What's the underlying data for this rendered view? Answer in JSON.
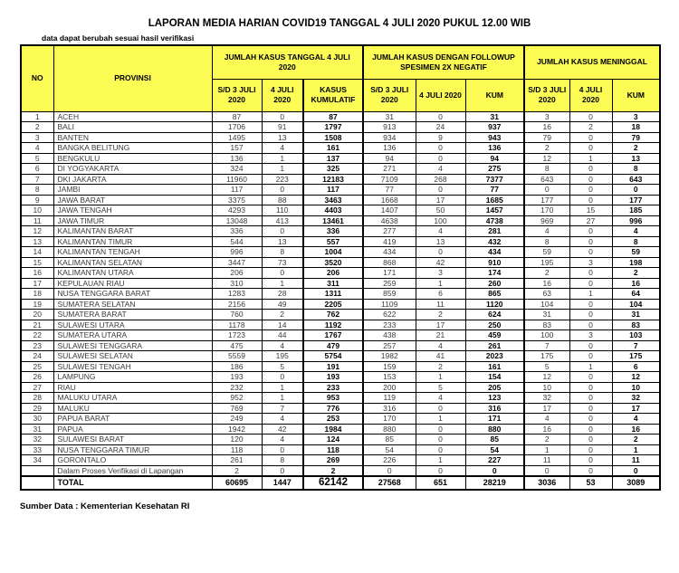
{
  "title": "LAPORAN MEDIA HARIAN COVID19 TANGGAL 4 JULI 2020 PUKUL 12.00 WIB",
  "note": "data dapat berubah sesuai hasil verifikasi",
  "footer": "Sumber Data : Kementerian Kesehatan RI",
  "colors": {
    "header_bg": "#FCFC54",
    "border": "#000000"
  },
  "table": {
    "col_headers": {
      "no": "NO",
      "provinsi": "PROVINSI",
      "groups": [
        {
          "label": "JUMLAH KASUS TANGGAL 4 JULI 2020",
          "sub": [
            "S/D 3 JULI 2020",
            "4 JULI 2020",
            "KASUS KUMULATIF"
          ]
        },
        {
          "label": "JUMLAH KASUS DENGAN FOLLOWUP SPESIMEN 2X NEGATIF",
          "sub": [
            "S/D 3 JULI 2020",
            "4 JULI 2020",
            "KUM"
          ]
        },
        {
          "label": "JUMLAH KASUS MENINGGAL",
          "sub": [
            "S/D 3 JULI 2020",
            "4 JULI 2020",
            "KUM"
          ]
        }
      ]
    },
    "rows": [
      {
        "no": "1",
        "provinsi": "ACEH",
        "values": [
          87,
          0,
          87,
          31,
          0,
          31,
          3,
          0,
          3
        ]
      },
      {
        "no": "2",
        "provinsi": "BALI",
        "values": [
          1706,
          91,
          1797,
          913,
          24,
          937,
          16,
          2,
          18
        ]
      },
      {
        "no": "3",
        "provinsi": "BANTEN",
        "values": [
          1495,
          13,
          1508,
          934,
          9,
          943,
          79,
          0,
          79
        ]
      },
      {
        "no": "4",
        "provinsi": "BANGKA BELITUNG",
        "values": [
          157,
          4,
          161,
          136,
          0,
          136,
          2,
          0,
          2
        ]
      },
      {
        "no": "5",
        "provinsi": "BENGKULU",
        "values": [
          136,
          1,
          137,
          94,
          0,
          94,
          12,
          1,
          13
        ]
      },
      {
        "no": "6",
        "provinsi": "DI YOGYAKARTA",
        "values": [
          324,
          1,
          325,
          271,
          4,
          275,
          8,
          0,
          8
        ]
      },
      {
        "no": "7",
        "provinsi": "DKI JAKARTA",
        "values": [
          11960,
          223,
          12183,
          7109,
          268,
          7377,
          643,
          0,
          643
        ]
      },
      {
        "no": "8",
        "provinsi": "JAMBI",
        "values": [
          117,
          0,
          117,
          77,
          0,
          77,
          0,
          0,
          0
        ]
      },
      {
        "no": "9",
        "provinsi": "JAWA BARAT",
        "values": [
          3375,
          88,
          3463,
          1668,
          17,
          1685,
          177,
          0,
          177
        ]
      },
      {
        "no": "10",
        "provinsi": "JAWA TENGAH",
        "values": [
          4293,
          110,
          4403,
          1407,
          50,
          1457,
          170,
          15,
          185
        ]
      },
      {
        "no": "11",
        "provinsi": "JAWA TIMUR",
        "values": [
          13048,
          413,
          13461,
          4638,
          100,
          4738,
          969,
          27,
          996
        ]
      },
      {
        "no": "12",
        "provinsi": "KALIMANTAN BARAT",
        "values": [
          336,
          0,
          336,
          277,
          4,
          281,
          4,
          0,
          4
        ]
      },
      {
        "no": "13",
        "provinsi": "KALIMANTAN TIMUR",
        "values": [
          544,
          13,
          557,
          419,
          13,
          432,
          8,
          0,
          8
        ]
      },
      {
        "no": "14",
        "provinsi": "KALIMANTAN TENGAH",
        "values": [
          996,
          8,
          1004,
          434,
          0,
          434,
          59,
          0,
          59
        ]
      },
      {
        "no": "15",
        "provinsi": "KALIMANTAN SELATAN",
        "values": [
          3447,
          73,
          3520,
          868,
          42,
          910,
          195,
          3,
          198
        ]
      },
      {
        "no": "16",
        "provinsi": "KALIMANTAN UTARA",
        "values": [
          206,
          0,
          206,
          171,
          3,
          174,
          2,
          0,
          2
        ]
      },
      {
        "no": "17",
        "provinsi": "KEPULAUAN RIAU",
        "values": [
          310,
          1,
          311,
          259,
          1,
          260,
          16,
          0,
          16
        ]
      },
      {
        "no": "18",
        "provinsi": "NUSA TENGGARA BARAT",
        "values": [
          1283,
          28,
          1311,
          859,
          6,
          865,
          63,
          1,
          64
        ]
      },
      {
        "no": "19",
        "provinsi": "SUMATERA SELATAN",
        "values": [
          2156,
          49,
          2205,
          1109,
          11,
          1120,
          104,
          0,
          104
        ]
      },
      {
        "no": "20",
        "provinsi": "SUMATERA BARAT",
        "values": [
          760,
          2,
          762,
          622,
          2,
          624,
          31,
          0,
          31
        ]
      },
      {
        "no": "21",
        "provinsi": "SULAWESI UTARA",
        "values": [
          1178,
          14,
          1192,
          233,
          17,
          250,
          83,
          0,
          83
        ]
      },
      {
        "no": "22",
        "provinsi": "SUMATERA UTARA",
        "values": [
          1723,
          44,
          1767,
          438,
          21,
          459,
          100,
          3,
          103
        ]
      },
      {
        "no": "23",
        "provinsi": "SULAWESI TENGGARA",
        "values": [
          475,
          4,
          479,
          257,
          4,
          261,
          7,
          0,
          7
        ]
      },
      {
        "no": "24",
        "provinsi": "SULAWESI SELATAN",
        "values": [
          5559,
          195,
          5754,
          1982,
          41,
          2023,
          175,
          0,
          175
        ]
      },
      {
        "no": "25",
        "provinsi": "SULAWESI TENGAH",
        "values": [
          186,
          5,
          191,
          159,
          2,
          161,
          5,
          1,
          6
        ]
      },
      {
        "no": "26",
        "provinsi": "LAMPUNG",
        "values": [
          193,
          0,
          193,
          153,
          1,
          154,
          12,
          0,
          12
        ]
      },
      {
        "no": "27",
        "provinsi": "RIAU",
        "values": [
          232,
          1,
          233,
          200,
          5,
          205,
          10,
          0,
          10
        ]
      },
      {
        "no": "28",
        "provinsi": "MALUKU UTARA",
        "values": [
          952,
          1,
          953,
          119,
          4,
          123,
          32,
          0,
          32
        ]
      },
      {
        "no": "29",
        "provinsi": "MALUKU",
        "values": [
          769,
          7,
          776,
          316,
          0,
          316,
          17,
          0,
          17
        ]
      },
      {
        "no": "30",
        "provinsi": "PAPUA BARAT",
        "values": [
          249,
          4,
          253,
          170,
          1,
          171,
          4,
          0,
          4
        ]
      },
      {
        "no": "31",
        "provinsi": "PAPUA",
        "values": [
          1942,
          42,
          1984,
          880,
          0,
          880,
          16,
          0,
          16
        ]
      },
      {
        "no": "32",
        "provinsi": "SULAWESI BARAT",
        "values": [
          120,
          4,
          124,
          85,
          0,
          85,
          2,
          0,
          2
        ]
      },
      {
        "no": "33",
        "provinsi": "NUSA TENGGARA TIMUR",
        "values": [
          118,
          0,
          118,
          54,
          0,
          54,
          1,
          0,
          1
        ]
      },
      {
        "no": "34",
        "provinsi": "GORONTALO",
        "values": [
          261,
          8,
          269,
          226,
          1,
          227,
          11,
          0,
          11
        ]
      },
      {
        "no": "",
        "provinsi": "Dalam Proses Verifikasi di Lapangan",
        "values": [
          2,
          0,
          2,
          0,
          0,
          0,
          0,
          0,
          0
        ]
      }
    ],
    "total": {
      "label": "TOTAL",
      "values": [
        60695,
        1447,
        62142,
        27568,
        651,
        28219,
        3036,
        53,
        3089
      ]
    }
  }
}
